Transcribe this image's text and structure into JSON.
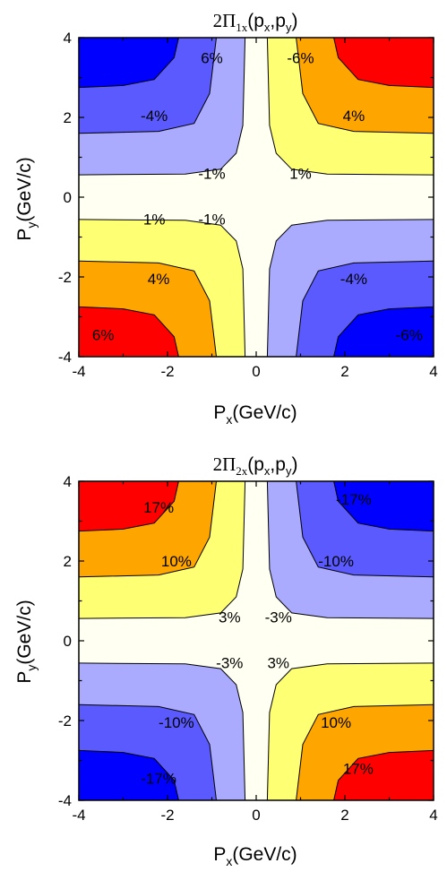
{
  "chart_data": [
    {
      "type": "heatmap",
      "title": "2Π",
      "title_sub": "1x",
      "title_tail": "(p",
      "title_x_sub": "x",
      "title_mid": ",p",
      "title_y_sub": "y",
      "title_end": ")",
      "xlabel": "P",
      "xlabel_sub": "x",
      "xlabel_tail": "(GeV/c)",
      "ylabel": "P",
      "ylabel_sub": "y",
      "ylabel_tail": "(GeV/c)",
      "xlim": [
        -4,
        4
      ],
      "ylim": [
        -4,
        4
      ],
      "xticks": [
        "-4",
        "-2",
        "0",
        "2",
        "4"
      ],
      "yticks": [
        "-4",
        "-2",
        "0",
        "2",
        "4"
      ],
      "sign": 1,
      "levels": [
        1,
        4,
        6
      ],
      "colors": {
        "neutral": "#fffff2",
        "pos1": "#ffff73",
        "pos2": "#ffa500",
        "pos3": "#ff0000",
        "neg1": "#aaaaff",
        "neg2": "#5a5aff",
        "neg3": "#0000ff"
      },
      "labels": [
        {
          "text": "6%",
          "x": -1.0,
          "y": 3.5
        },
        {
          "text": "-6%",
          "x": 1.0,
          "y": 3.5
        },
        {
          "text": "-4%",
          "x": -2.3,
          "y": 2.05
        },
        {
          "text": "4%",
          "x": 2.2,
          "y": 2.05
        },
        {
          "text": "-1%",
          "x": -1.0,
          "y": 0.6
        },
        {
          "text": "1%",
          "x": 1.0,
          "y": 0.6
        },
        {
          "text": "1%",
          "x": -2.3,
          "y": -0.55
        },
        {
          "text": "-1%",
          "x": -1.0,
          "y": -0.55
        },
        {
          "text": "4%",
          "x": -2.2,
          "y": -2.05
        },
        {
          "text": "-4%",
          "x": 2.2,
          "y": -2.05
        },
        {
          "text": "6%",
          "x": -3.45,
          "y": -3.45
        },
        {
          "text": "-6%",
          "x": 3.45,
          "y": -3.45
        }
      ]
    },
    {
      "type": "heatmap",
      "title": "2Π",
      "title_sub": "2x",
      "title_tail": "(p",
      "title_x_sub": "x",
      "title_mid": ",p",
      "title_y_sub": "y",
      "title_end": ")",
      "xlabel": "P",
      "xlabel_sub": "x",
      "xlabel_tail": "(GeV/c)",
      "ylabel": "P",
      "ylabel_sub": "y",
      "ylabel_tail": "(GeV/c)",
      "xlim": [
        -4,
        4
      ],
      "ylim": [
        -4,
        4
      ],
      "xticks": [
        "-4",
        "-2",
        "0",
        "2",
        "4"
      ],
      "yticks": [
        "-4",
        "-2",
        "0",
        "2",
        "4"
      ],
      "sign": -1,
      "levels": [
        3,
        10,
        17
      ],
      "colors": {
        "neutral": "#fffff2",
        "pos1": "#ffff73",
        "pos2": "#ffa500",
        "pos3": "#ff0000",
        "neg1": "#aaaaff",
        "neg2": "#5a5aff",
        "neg3": "#0000ff"
      },
      "labels": [
        {
          "text": "17%",
          "x": -2.2,
          "y": 3.35
        },
        {
          "text": "-17%",
          "x": 2.2,
          "y": 3.55
        },
        {
          "text": "10%",
          "x": -1.8,
          "y": 2.0
        },
        {
          "text": "-10%",
          "x": 1.8,
          "y": 2.0
        },
        {
          "text": "3%",
          "x": -0.6,
          "y": 0.6
        },
        {
          "text": "-3%",
          "x": 0.5,
          "y": 0.6
        },
        {
          "text": "-3%",
          "x": -0.6,
          "y": -0.55
        },
        {
          "text": "3%",
          "x": 0.5,
          "y": -0.55
        },
        {
          "text": "-10%",
          "x": -1.8,
          "y": -2.05
        },
        {
          "text": "10%",
          "x": 1.8,
          "y": -2.05
        },
        {
          "text": "-17%",
          "x": -2.2,
          "y": -3.45
        },
        {
          "text": "17%",
          "x": 2.3,
          "y": -3.2
        }
      ]
    }
  ]
}
